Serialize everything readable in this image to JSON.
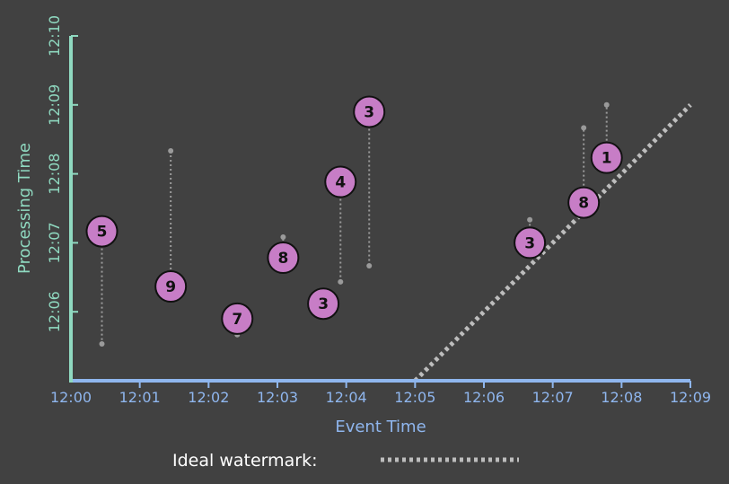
{
  "chart_data": {
    "type": "scatter",
    "xlabel": "Event Time",
    "ylabel": "Processing Time",
    "x_ticks": [
      "12:00",
      "12:01",
      "12:02",
      "12:03",
      "12:04",
      "12:05",
      "12:06",
      "12:07",
      "12:08",
      "12:09"
    ],
    "y_ticks": [
      "12:06",
      "12:07",
      "12:08",
      "12:09",
      "12:10"
    ],
    "xlim": [
      "12:00",
      "12:09"
    ],
    "ylim": [
      "12:05",
      "12:10"
    ],
    "grid": false,
    "points": [
      {
        "label": "5",
        "event_time": "12:00:27",
        "processing_time": "12:07:10",
        "origin_time": "12:05:32"
      },
      {
        "label": "9",
        "event_time": "12:01:27",
        "processing_time": "12:06:22",
        "origin_time": "12:08:20"
      },
      {
        "label": "7",
        "event_time": "12:02:25",
        "processing_time": "12:05:54",
        "origin_time": "12:05:40"
      },
      {
        "label": "8",
        "event_time": "12:03:05",
        "processing_time": "12:06:47",
        "origin_time": "12:07:05"
      },
      {
        "label": "3",
        "event_time": "12:03:40",
        "processing_time": "12:06:07",
        "origin_time": "12:06:07"
      },
      {
        "label": "4",
        "event_time": "12:03:55",
        "processing_time": "12:07:53",
        "origin_time": "12:06:26"
      },
      {
        "label": "3",
        "event_time": "12:04:20",
        "processing_time": "12:08:54",
        "origin_time": "12:06:40"
      },
      {
        "label": "3",
        "event_time": "12:06:40",
        "processing_time": "12:06:60",
        "origin_time": "12:07:20"
      },
      {
        "label": "8",
        "event_time": "12:07:27",
        "processing_time": "12:07:35",
        "origin_time": "12:08:40"
      },
      {
        "label": "1",
        "event_time": "12:07:47",
        "processing_time": "12:08:14",
        "origin_time": "12:09:00"
      }
    ],
    "watermark": {
      "label": "Ideal watermark:",
      "style": "dotted",
      "points": [
        {
          "event_time": "12:05",
          "processing_time": "12:05"
        },
        {
          "event_time": "12:09",
          "processing_time": "12:09"
        }
      ]
    },
    "colors": {
      "background": "#414141",
      "x_axis": "#8fb6ee",
      "y_axis": "#8fd9c0",
      "point_fill": "#c77dc6",
      "point_stroke": "#111111",
      "watermark": "#bdbdbd",
      "legend_text": "#ffffff"
    }
  }
}
